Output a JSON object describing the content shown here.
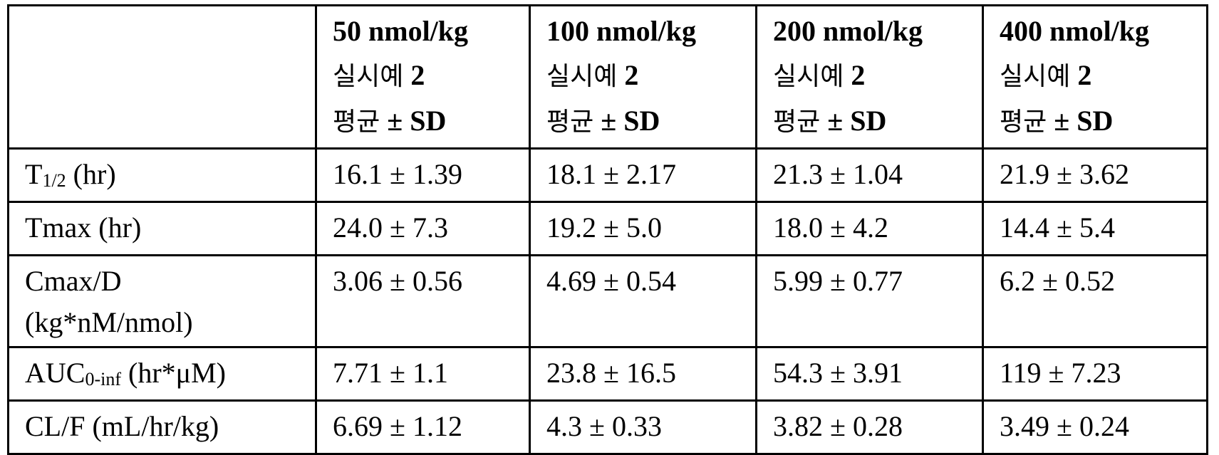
{
  "table": {
    "columns": [
      {
        "dose": "50 nmol/kg",
        "example": "실시예",
        "example_no": "2",
        "stat_ko": "평균",
        "stat": "± SD"
      },
      {
        "dose": "100 nmol/kg",
        "example": "실시예",
        "example_no": "2",
        "stat_ko": "평균",
        "stat": "± SD"
      },
      {
        "dose": "200 nmol/kg",
        "example": "실시예",
        "example_no": "2",
        "stat_ko": "평균",
        "stat": "± SD"
      },
      {
        "dose": "400 nmol/kg",
        "example": "실시예",
        "example_no": "2",
        "stat_ko": "평균",
        "stat": "± SD"
      }
    ],
    "rows": [
      {
        "label_main": "T",
        "label_sub": "1/2",
        "label_tail": " (hr)",
        "values": [
          "16.1 ± 1.39",
          "18.1 ± 2.17",
          "21.3 ± 1.04",
          "21.9 ± 3.62"
        ]
      },
      {
        "label_main": "Tmax (hr)",
        "values": [
          "24.0 ± 7.3",
          "19.2 ± 5.0",
          "18.0 ± 4.2",
          "14.4 ± 5.4"
        ]
      },
      {
        "label_main": "Cmax/D",
        "label_line2": "(kg*nM/nmol)",
        "values": [
          "3.06 ± 0.56",
          "4.69 ± 0.54",
          "5.99 ± 0.77",
          "6.2 ± 0.52"
        ]
      },
      {
        "label_main": "AUC",
        "label_sub": "0-inf",
        "label_tail": " (hr*μM)",
        "values": [
          "7.71 ± 1.1",
          "23.8 ± 16.5",
          "54.3 ± 3.91",
          "119 ± 7.23"
        ]
      },
      {
        "label_main": "CL/F (mL/hr/kg)",
        "values": [
          "6.69 ± 1.12",
          "4.3 ± 0.33",
          "3.82 ± 0.28",
          "3.49 ± 0.24"
        ]
      }
    ]
  }
}
